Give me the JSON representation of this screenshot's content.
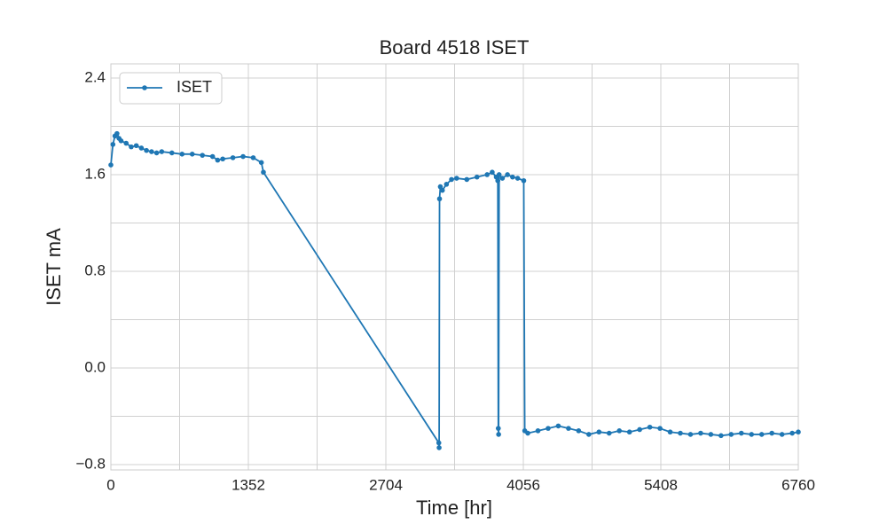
{
  "chart_data": {
    "type": "line",
    "title": "Board 4518 ISET",
    "xlabel": "Time [hr]",
    "ylabel": "ISET mA",
    "x": [
      0,
      20,
      40,
      60,
      80,
      100,
      150,
      200,
      250,
      300,
      350,
      400,
      450,
      500,
      600,
      700,
      800,
      900,
      1000,
      1050,
      1100,
      1200,
      1300,
      1400,
      1480,
      1500,
      3225,
      3228,
      3232,
      3240,
      3260,
      3300,
      3350,
      3400,
      3500,
      3600,
      3700,
      3750,
      3790,
      3805,
      3810,
      3813,
      3818,
      3850,
      3900,
      3950,
      4000,
      4060,
      4070,
      4100,
      4200,
      4300,
      4400,
      4500,
      4600,
      4700,
      4800,
      4900,
      5000,
      5100,
      5200,
      5300,
      5400,
      5500,
      5600,
      5700,
      5800,
      5900,
      6000,
      6100,
      6200,
      6300,
      6400,
      6500,
      6600,
      6700,
      6760
    ],
    "series": [
      {
        "name": "ISET",
        "color": "#1f77b4",
        "values": [
          1.68,
          1.85,
          1.92,
          1.94,
          1.9,
          1.88,
          1.86,
          1.83,
          1.84,
          1.82,
          1.8,
          1.79,
          1.78,
          1.79,
          1.78,
          1.77,
          1.77,
          1.76,
          1.75,
          1.72,
          1.73,
          1.74,
          1.75,
          1.74,
          1.7,
          1.62,
          -0.62,
          -0.66,
          1.4,
          1.5,
          1.47,
          1.52,
          1.56,
          1.57,
          1.56,
          1.58,
          1.6,
          1.62,
          1.58,
          1.55,
          -0.5,
          -0.55,
          1.6,
          1.57,
          1.6,
          1.58,
          1.57,
          1.55,
          -0.52,
          -0.54,
          -0.52,
          -0.5,
          -0.48,
          -0.5,
          -0.52,
          -0.55,
          -0.53,
          -0.54,
          -0.52,
          -0.53,
          -0.51,
          -0.49,
          -0.5,
          -0.53,
          -0.54,
          -0.55,
          -0.54,
          -0.55,
          -0.56,
          -0.55,
          -0.54,
          -0.55,
          -0.55,
          -0.54,
          -0.55,
          -0.54,
          -0.53
        ]
      }
    ],
    "xlim": [
      0,
      6760
    ],
    "xticks": [
      0,
      1352,
      2704,
      4056,
      5408,
      6760
    ],
    "ylim": [
      -0.844,
      2.517
    ],
    "yticks": [
      {
        "value": -0.8,
        "label": "−0.8"
      },
      {
        "value": 0,
        "label": "0.0"
      },
      {
        "value": 0.8,
        "label": "0.8"
      },
      {
        "value": 1.6,
        "label": "1.6"
      },
      {
        "value": 2.4,
        "label": "2.4"
      }
    ],
    "grid": true,
    "legend": "upper left"
  }
}
